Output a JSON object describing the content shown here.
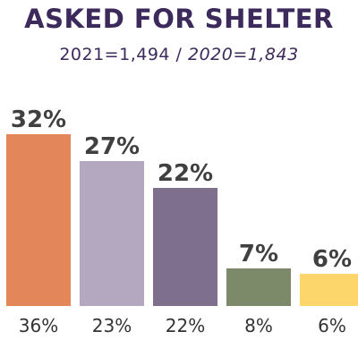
{
  "header": {
    "title": "ASKED FOR SHELTER",
    "subtitle_current": "2021=1,494",
    "subtitle_separator": " / ",
    "subtitle_previous": "2020=1,843"
  },
  "chart_data": {
    "type": "bar",
    "title": "ASKED FOR SHELTER",
    "subtitle": "2021=1,494 / 2020=1,843",
    "xlabel": "",
    "ylabel": "",
    "ylim": [
      0,
      40
    ],
    "grid": false,
    "legend": "none",
    "series": [
      {
        "values": [
          32,
          27,
          22,
          7,
          6
        ],
        "labels": [
          "32%",
          "27%",
          "22%",
          "7%",
          "6%"
        ],
        "colors": [
          "#e3865a",
          "#b4a7c0",
          "#7e6f8e",
          "#7d8a6a",
          "#fdd66b"
        ]
      },
      {
        "values": [
          36,
          23,
          22,
          8,
          6
        ],
        "labels": [
          "36%",
          "23%",
          "22%",
          "8%",
          "6%"
        ]
      }
    ]
  }
}
